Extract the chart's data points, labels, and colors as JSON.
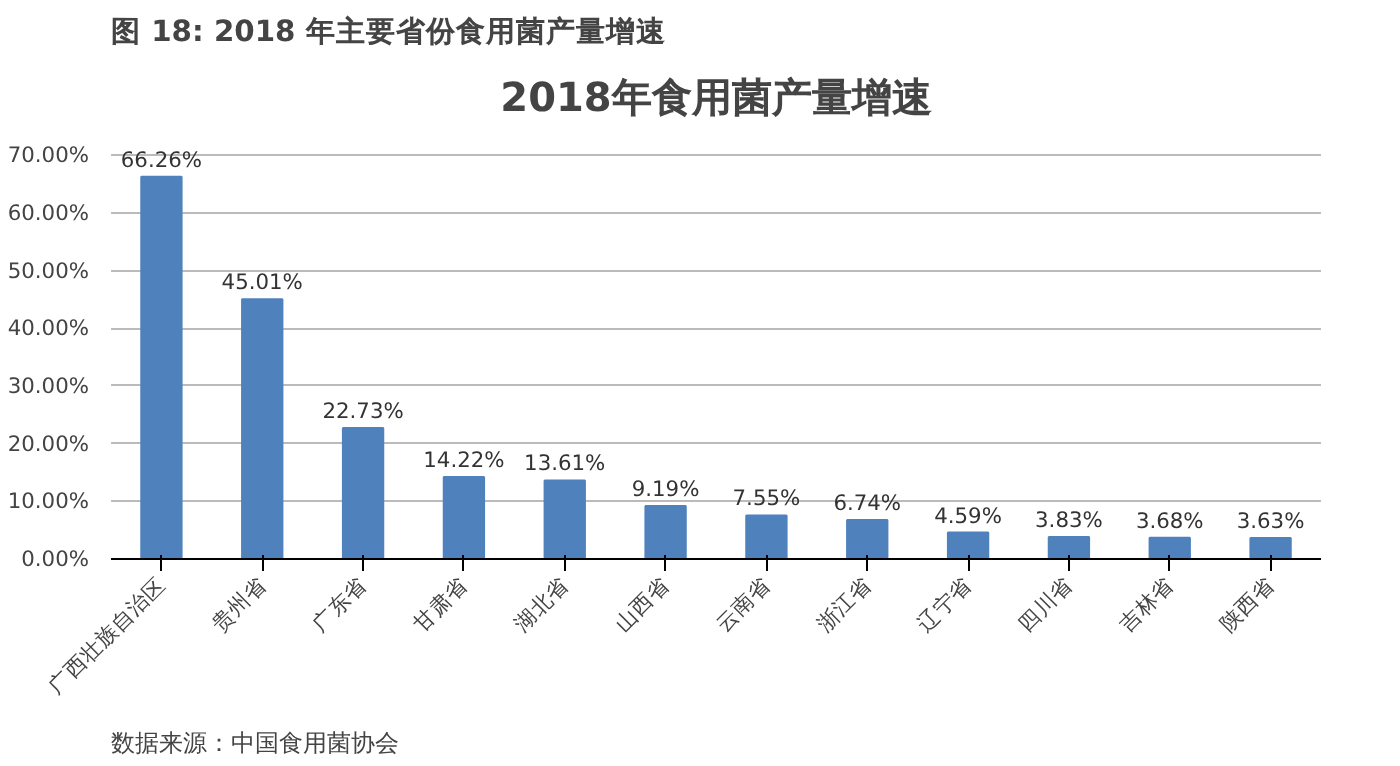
{
  "chart_data": {
    "type": "bar",
    "title": "图 18: 2018 年主要省份食用菌产量增速",
    "subtitle": "2018年食用菌产量增速",
    "categories": [
      "广西壮族自治区",
      "贵州省",
      "广东省",
      "甘肃省",
      "湖北省",
      "山西省",
      "云南省",
      "浙江省",
      "辽宁省",
      "四川省",
      "吉林省",
      "陕西省"
    ],
    "values": [
      66.26,
      45.01,
      22.73,
      14.22,
      13.61,
      9.19,
      7.55,
      6.74,
      4.59,
      3.83,
      3.68,
      3.63
    ],
    "value_labels": [
      "66.26%",
      "45.01%",
      "22.73%",
      "14.22%",
      "13.61%",
      "9.19%",
      "7.55%",
      "6.74%",
      "4.59%",
      "3.83%",
      "3.68%",
      "3.63%"
    ],
    "color": "#4f81bd",
    "ylim": [
      0,
      70
    ],
    "yticks": [
      {
        "value": 0,
        "label": "0.00%"
      },
      {
        "value": 10,
        "label": "10.00%"
      },
      {
        "value": 20,
        "label": "20.00%"
      },
      {
        "value": 30,
        "label": "30.00%"
      },
      {
        "value": 40,
        "label": "40.00%"
      },
      {
        "value": 50,
        "label": "50.00%"
      },
      {
        "value": 60,
        "label": "60.00%"
      },
      {
        "value": 70,
        "label": "70.00%"
      }
    ],
    "grid": "y",
    "annotations": [
      "数据来源：中国食用菌协会"
    ]
  }
}
